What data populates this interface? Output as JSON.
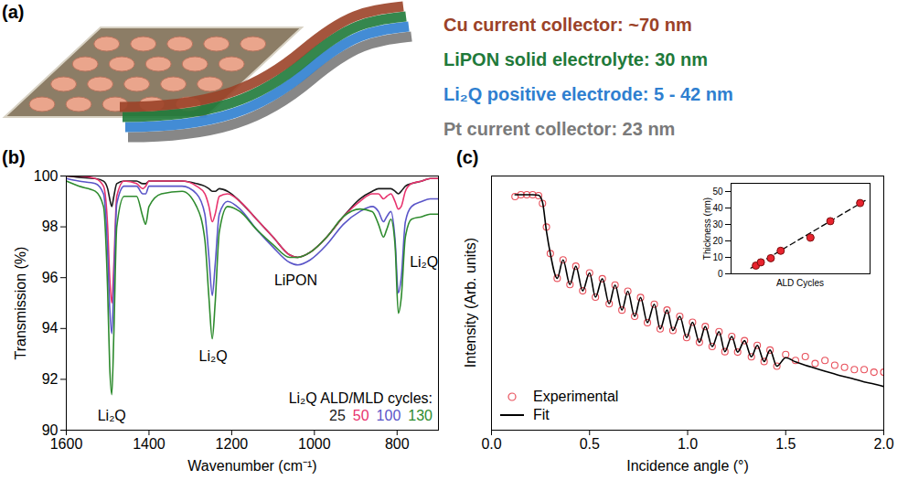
{
  "diagram": {
    "panel": "(a)",
    "layers": [
      {
        "label": "Cu current collector: ~70 nm",
        "color": "#9b4228"
      },
      {
        "label": "LiPON solid electrolyte: 30 nm",
        "color": "#1f7a3a"
      },
      {
        "label": "Li₂Q positive electrode: 5 - 42 nm",
        "color": "#2f7fd0"
      },
      {
        "label": "Pt current collector: 23 nm",
        "color": "#7a7a7a"
      }
    ]
  },
  "chart_data": [
    {
      "panel": "(b)",
      "type": "line",
      "x_label": "Wavenumber (cm⁻¹)",
      "y_label": "Transmission (%)",
      "xlim": [
        1600,
        700
      ],
      "xticks": [
        1600,
        1400,
        1200,
        1000,
        800
      ],
      "ylim": [
        90,
        100
      ],
      "yticks": [
        90,
        92,
        94,
        96,
        98,
        100
      ],
      "legend": "bottom-right",
      "legend_title": "Li₂Q ALD/MLD cycles:",
      "x": [
        1600,
        1570,
        1530,
        1510,
        1500,
        1495,
        1490,
        1485,
        1478,
        1460,
        1430,
        1415,
        1408,
        1400,
        1370,
        1320,
        1285,
        1265,
        1255,
        1247,
        1240,
        1230,
        1210,
        1180,
        1140,
        1100,
        1060,
        1040,
        1010,
        970,
        930,
        890,
        860,
        845,
        833,
        825,
        815,
        805,
        797,
        790,
        780,
        765,
        740,
        720,
        700
      ],
      "series": [
        {
          "name": "25",
          "color": "#1a1a1a",
          "values": [
            100,
            99.95,
            99.9,
            99.8,
            99.5,
            99.1,
            98.8,
            99.2,
            99.7,
            99.8,
            99.8,
            99.7,
            99.7,
            99.8,
            99.8,
            99.8,
            99.7,
            99.6,
            99.5,
            99.4,
            99.4,
            99.5,
            99.4,
            99.0,
            98.3,
            97.6,
            96.9,
            96.8,
            97.0,
            97.6,
            98.4,
            99.1,
            99.4,
            99.5,
            99.5,
            99.5,
            99.5,
            99.4,
            99.3,
            99.4,
            99.6,
            99.7,
            99.8,
            99.9,
            99.9
          ]
        },
        {
          "name": "50",
          "color": "#e8336e",
          "values": [
            100,
            100,
            99.9,
            99.6,
            98.0,
            96.0,
            95.0,
            96.5,
            99.2,
            99.8,
            99.7,
            99.5,
            99.6,
            99.8,
            99.8,
            99.8,
            99.6,
            99.3,
            98.8,
            98.2,
            98.5,
            99.2,
            99.3,
            99.0,
            98.3,
            97.6,
            96.9,
            96.8,
            97.0,
            97.6,
            98.4,
            99.0,
            99.3,
            99.3,
            99.1,
            99.2,
            99.3,
            99.0,
            98.7,
            98.8,
            99.4,
            99.7,
            99.8,
            99.9,
            99.9
          ]
        },
        {
          "name": "100",
          "color": "#5a55c8",
          "values": [
            99.9,
            99.8,
            99.7,
            99.3,
            97.0,
            94.8,
            93.8,
            95.8,
            98.9,
            99.6,
            99.6,
            99.3,
            99.3,
            99.6,
            99.6,
            99.6,
            99.3,
            98.5,
            96.8,
            95.3,
            96.5,
            98.5,
            99.0,
            98.7,
            97.9,
            97.2,
            96.6,
            96.5,
            96.7,
            97.3,
            98.1,
            98.6,
            98.8,
            98.6,
            98.2,
            98.4,
            98.6,
            97.5,
            95.4,
            96.0,
            98.2,
            98.8,
            99.0,
            99.1,
            99.1
          ]
        },
        {
          "name": "130",
          "color": "#2e8b2e",
          "values": [
            99.8,
            99.6,
            99.4,
            98.8,
            95.5,
            92.5,
            91.4,
            93.8,
            98.0,
            99.2,
            99.2,
            98.4,
            98.1,
            98.8,
            99.3,
            99.4,
            98.8,
            97.5,
            95.2,
            93.6,
            95.0,
            97.8,
            98.8,
            98.6,
            97.9,
            97.3,
            96.8,
            96.8,
            97.0,
            97.6,
            98.4,
            98.7,
            98.6,
            98.1,
            97.6,
            97.9,
            98.3,
            97.3,
            94.6,
            95.2,
            97.6,
            98.3,
            98.4,
            98.5,
            98.5
          ]
        }
      ],
      "annotations": [
        {
          "text": "Li₂Q",
          "x": 1490,
          "y": 90.55
        },
        {
          "text": "Li₂Q",
          "x": 1245,
          "y": 92.9
        },
        {
          "text": "LiPON",
          "x": 1045,
          "y": 95.9
        },
        {
          "text": "Li₂Q",
          "x": 735,
          "y": 96.6
        }
      ]
    },
    {
      "panel": "(c)",
      "type": "line",
      "log": "y",
      "tick_labels": "x",
      "x_label": "Incidence angle (°)",
      "y_label": "Intensity (Arb. units)",
      "xlim": [
        0,
        2
      ],
      "xticks": [
        {
          "value": 0,
          "label": "0.0"
        },
        0.5,
        {
          "value": 1,
          "label": "1.0"
        },
        1.5,
        {
          "value": 2,
          "label": "2.0"
        }
      ],
      "ylim": [
        1e-06,
        3
      ],
      "legend": "bottom-left",
      "x": [
        0.12,
        0.15,
        0.18,
        0.21,
        0.24,
        0.26,
        0.28,
        0.3,
        0.335,
        0.365,
        0.4,
        0.43,
        0.465,
        0.5,
        0.53,
        0.565,
        0.6,
        0.63,
        0.665,
        0.695,
        0.73,
        0.76,
        0.795,
        0.83,
        0.86,
        0.895,
        0.925,
        0.96,
        0.995,
        1.025,
        1.06,
        1.09,
        1.125,
        1.16,
        1.19,
        1.225,
        1.255,
        1.29,
        1.325,
        1.355,
        1.39,
        1.42,
        1.455,
        1.5,
        1.55,
        1.6,
        1.65,
        1.7,
        1.75,
        1.8,
        1.85,
        1.9,
        1.95,
        2.0
      ],
      "series": [
        {
          "name": "Experimental",
          "type": "scatter",
          "marker": "open circle",
          "color": "#e8505b",
          "values": [
            0.9,
            1.0,
            1.0,
            1.0,
            0.95,
            0.6,
            0.15,
            0.0316,
            0.00741,
            0.0219,
            0.00513,
            0.0151,
            0.00355,
            0.0102,
            0.00245,
            0.00724,
            0.00166,
            0.00501,
            0.00115,
            0.00347,
            0.000794,
            0.0024,
            0.00055,
            0.00162,
            0.00038,
            0.00115,
            0.000347,
            0.000794,
            0.000229,
            0.000562,
            0.000174,
            0.000437,
            0.000135,
            0.000324,
            0.0001,
            0.000245,
            9.77e-05,
            0.000191,
            7.41e-05,
            0.000145,
            5.62e-05,
            0.00011,
            4.27e-05,
            8.5e-05,
            6e-05,
            7.5e-05,
            5e-05,
            6e-05,
            4.5e-05,
            4e-05,
            3.5e-05,
            3.5e-05,
            3e-05,
            3e-05
          ]
        },
        {
          "name": "Fit",
          "type": "line",
          "line_style": "solid",
          "color": "#000000",
          "values": [
            1.0,
            1.0,
            1.0,
            1.0,
            0.97,
            0.65,
            0.12,
            0.0316,
            0.00741,
            0.0219,
            0.00513,
            0.0151,
            0.00355,
            0.0102,
            0.00245,
            0.00724,
            0.00166,
            0.00501,
            0.00115,
            0.00347,
            0.000794,
            0.0024,
            0.00055,
            0.00162,
            0.00038,
            0.00115,
            0.000347,
            0.000794,
            0.000229,
            0.000562,
            0.000174,
            0.000437,
            0.000135,
            0.000324,
            0.0001,
            0.000245,
            9.77e-05,
            0.000191,
            7.41e-05,
            0.000145,
            5.62e-05,
            0.00011,
            4.27e-05,
            7e-05,
            5.5e-05,
            4.5e-05,
            3.8e-05,
            3.2e-05,
            2.7e-05,
            2.3e-05,
            2e-05,
            1.7e-05,
            1.5e-05,
            1.3e-05
          ]
        }
      ],
      "inset": {
        "type": "scatter",
        "tick_labels": "y",
        "x_label": "ALD Cycles",
        "y_label": "Thickness (nm)",
        "xlim": [
          0,
          140
        ],
        "ylim": [
          0,
          55
        ],
        "yticks": [
          0,
          10,
          20,
          30,
          40,
          50
        ],
        "color": "#e8232e",
        "marker": "circle",
        "x": [
          25,
          30,
          40,
          50,
          80,
          100,
          130
        ],
        "values": [
          5,
          7,
          9.5,
          14,
          22,
          32,
          43
        ],
        "fit": {
          "x": [
            20,
            135
          ],
          "values": [
            3.5,
            44.5
          ],
          "line_style": "dashed",
          "color": "#000000"
        }
      }
    }
  ]
}
